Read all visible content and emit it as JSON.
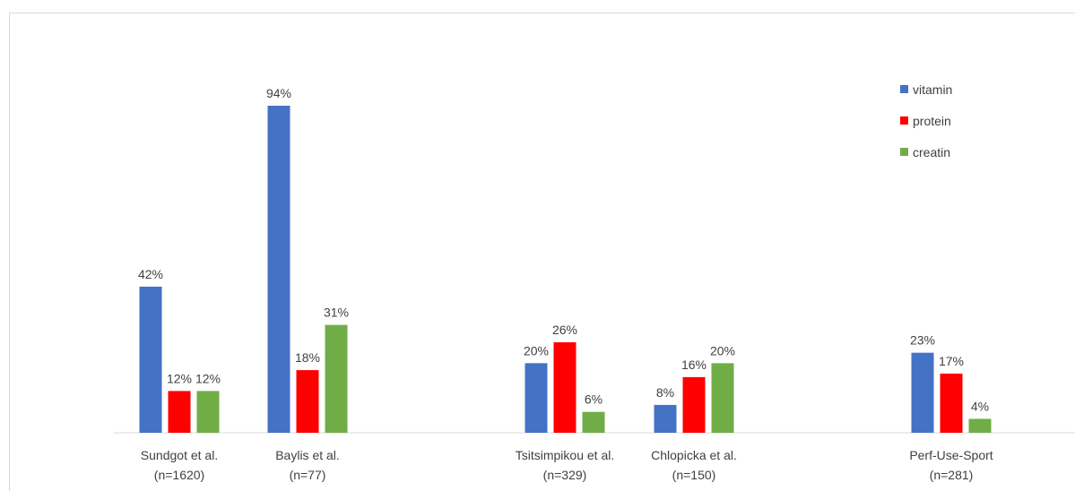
{
  "chart_data": {
    "type": "bar",
    "categories": [
      [
        "Sundgot et al.",
        "(n=1620)"
      ],
      [
        "Baylis et al.",
        "(n=77)"
      ],
      [
        "Tsitsimpikou et al.",
        "(n=329)"
      ],
      [
        "Chlopicka et al.",
        "(n=150)"
      ],
      [
        "Perf-Use-Sport",
        "(n=281)"
      ]
    ],
    "series": [
      {
        "name": "vitamin",
        "color": "#4472c4",
        "values": [
          42,
          94,
          20,
          8,
          23
        ],
        "labels": [
          "42%",
          "94%",
          "20%",
          "8%",
          "23%"
        ]
      },
      {
        "name": "protein",
        "color": "#ff0000",
        "values": [
          12,
          18,
          26,
          16,
          17
        ],
        "labels": [
          "12%",
          "18%",
          "26%",
          "16%",
          "17%"
        ]
      },
      {
        "name": "creatin",
        "color": "#70ad47",
        "values": [
          12,
          31,
          6,
          20,
          4
        ],
        "labels": [
          "12%",
          "31%",
          "6%",
          "20%",
          "4%"
        ]
      }
    ],
    "ylim": [
      0,
      100
    ],
    "legend_position": "top-right",
    "grid": false
  }
}
